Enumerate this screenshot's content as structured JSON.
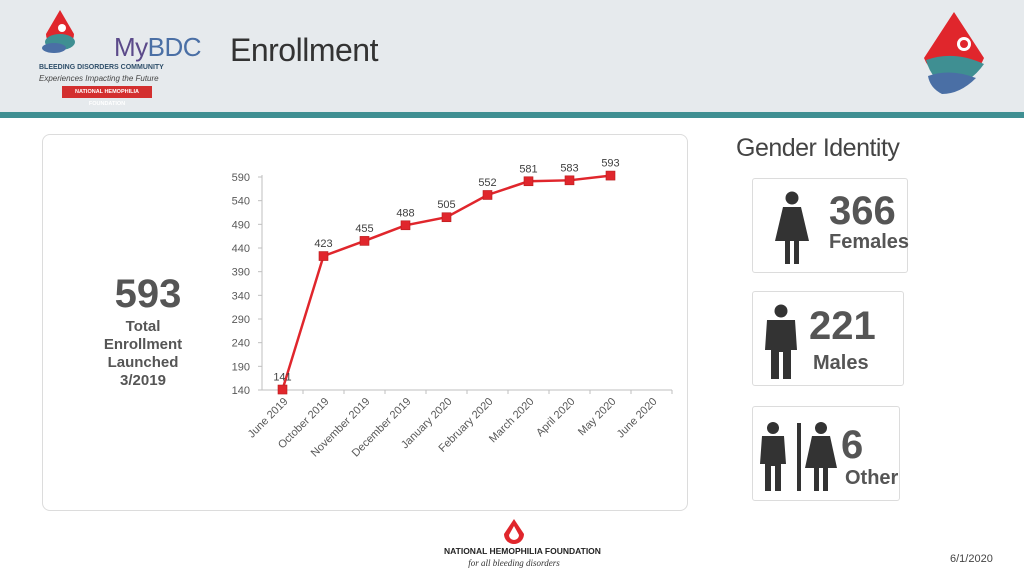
{
  "header": {
    "title": "Enrollment",
    "logo": {
      "name_my": "My",
      "name_bdc": "BDC",
      "subtitle": "BLEEDING DISORDERS COMMUNITY",
      "tagline": "Experiences Impacting the Future",
      "badge": "NATIONAL HEMOPHILIA FOUNDATION"
    }
  },
  "summary": {
    "total": "593",
    "label": "Total\nEnrollment\nLaunched\n3/2019"
  },
  "gender": {
    "title": "Gender Identity",
    "females": {
      "count": "366",
      "label": "Females"
    },
    "males": {
      "count": "221",
      "label": "Males"
    },
    "other": {
      "count": "6",
      "label": "Other"
    }
  },
  "footer": {
    "org_name": "NATIONAL HEMOPHILIA FOUNDATION",
    "org_tagline": "for all bleeding disorders",
    "date": "6/1/2020"
  },
  "colors": {
    "line": "#e0262c",
    "accent_bar": "#3f8f92",
    "text": "#555555"
  },
  "chart_data": {
    "type": "line",
    "title": "",
    "xlabel": "",
    "ylabel": "",
    "categories": [
      "June 2019",
      "October 2019",
      "November 2019",
      "December 2019",
      "January 2020",
      "February 2020",
      "March 2020",
      "April 2020",
      "May 2020",
      "June 2020"
    ],
    "series": [
      {
        "name": "Enrollment",
        "values": [
          141,
          423,
          455,
          488,
          505,
          552,
          581,
          583,
          593,
          null
        ],
        "data_labels": [
          "141",
          "423",
          "455",
          "488",
          "505",
          "552",
          "581",
          "583",
          "593",
          ""
        ]
      }
    ],
    "yticks": [
      140,
      190,
      240,
      290,
      340,
      390,
      440,
      490,
      540,
      590
    ],
    "ylim": [
      140,
      590
    ]
  }
}
